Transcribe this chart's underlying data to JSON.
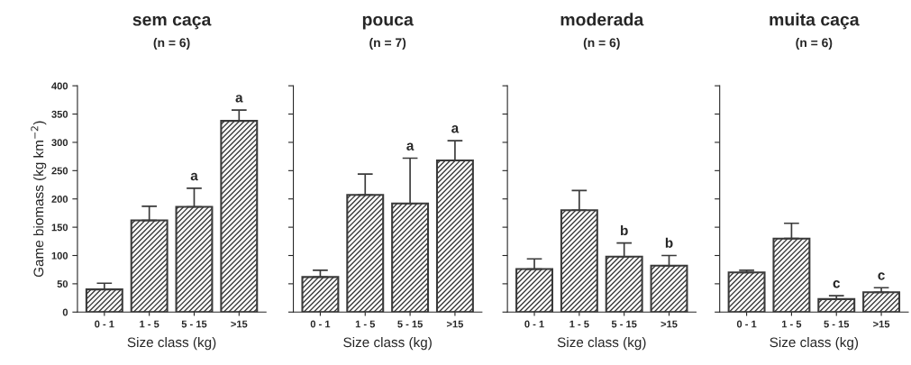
{
  "chart_data": [
    {
      "type": "bar",
      "title": "sem caça",
      "subtitle": "(n = 6)",
      "xlabel": "Size class (kg)",
      "ylabel": "Game biomass (kg km$^{−2}$)",
      "categories": [
        "0 - 1",
        "1 - 5",
        "5 - 15",
        ">15"
      ],
      "values": [
        40,
        162,
        186,
        338
      ],
      "errors": [
        [
          40,
          51
        ],
        [
          162,
          187
        ],
        [
          186,
          219
        ],
        [
          338,
          357
        ]
      ],
      "color": "#3a3a3a",
      "ylim": [
        0,
        400
      ],
      "yticks": [
        0,
        50,
        100,
        150,
        200,
        250,
        300,
        350,
        400
      ],
      "grid": false,
      "annotations": [
        {
          "text": "a",
          "x": "5 - 15",
          "y": 219
        },
        {
          "text": "a",
          "x": ">15",
          "y": 357
        }
      ]
    },
    {
      "type": "bar",
      "title": "pouca",
      "subtitle": "(n = 7)",
      "xlabel": "Size class (kg)",
      "categories": [
        "0 - 1",
        "1 - 5",
        "5 - 15",
        ">15"
      ],
      "values": [
        62,
        207,
        192,
        268
      ],
      "errors": [
        [
          62,
          74
        ],
        [
          207,
          244
        ],
        [
          192,
          272
        ],
        [
          268,
          303
        ]
      ],
      "color": "#3a3a3a",
      "ylim": [
        0,
        400
      ],
      "yticks": [
        0,
        50,
        100,
        150,
        200,
        250,
        300,
        350,
        400
      ],
      "tick_labels": "x",
      "grid": false,
      "annotations": [
        {
          "text": "a",
          "x": "5 - 15",
          "y": 272
        },
        {
          "text": "a",
          "x": ">15",
          "y": 303
        }
      ]
    },
    {
      "type": "bar",
      "title": "moderada",
      "subtitle": "(n = 6)",
      "xlabel": "Size class (kg)",
      "categories": [
        "0 - 1",
        "1 - 5",
        "5 - 15",
        ">15"
      ],
      "values": [
        76,
        180,
        98,
        82
      ],
      "errors": [
        [
          76,
          94
        ],
        [
          180,
          215
        ],
        [
          98,
          122
        ],
        [
          82,
          100
        ]
      ],
      "color": "#3a3a3a",
      "ylim": [
        0,
        400
      ],
      "yticks": [
        0,
        50,
        100,
        150,
        200,
        250,
        300,
        350,
        400
      ],
      "tick_labels": "x",
      "grid": false,
      "annotations": [
        {
          "text": "b",
          "x": "5 - 15",
          "y": 122
        },
        {
          "text": "b",
          "x": ">15",
          "y": 100
        }
      ]
    },
    {
      "type": "bar",
      "title": "muita caça",
      "subtitle": "(n = 6)",
      "xlabel": "Size class (kg)",
      "categories": [
        "0 - 1",
        "1 - 5",
        "5 - 15",
        ">15"
      ],
      "values": [
        70,
        130,
        23,
        35
      ],
      "errors": [
        [
          70,
          74
        ],
        [
          130,
          157
        ],
        [
          23,
          29
        ],
        [
          35,
          43
        ]
      ],
      "color": "#3a3a3a",
      "ylim": [
        0,
        400
      ],
      "yticks": [
        0,
        50,
        100,
        150,
        200,
        250,
        300,
        350,
        400
      ],
      "tick_labels": "x",
      "grid": false,
      "annotations": [
        {
          "text": "c",
          "x": "5 - 15",
          "y": 29
        },
        {
          "text": "c",
          "x": ">15",
          "y": 43
        }
      ]
    }
  ]
}
